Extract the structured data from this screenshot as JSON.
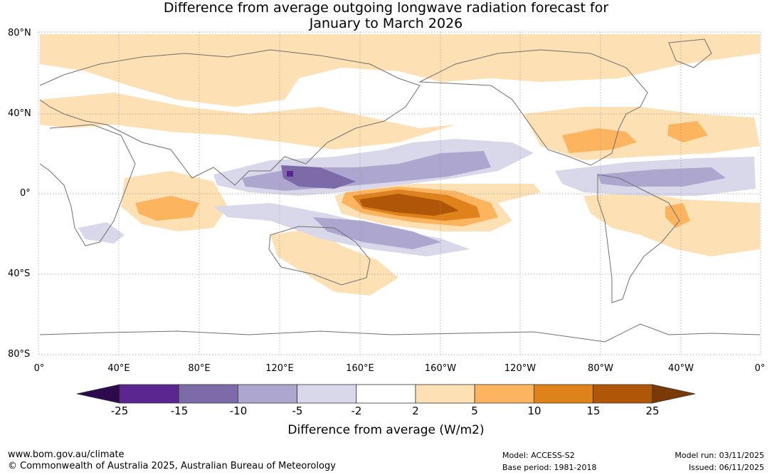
{
  "header": {
    "title_line1": "Difference from average outgoing longwave radiation forecast for",
    "title_line2": "January to March 2026"
  },
  "map": {
    "lat_labels": [
      "80°N",
      "40°N",
      "0°",
      "40°S",
      "80°S"
    ],
    "lon_labels": [
      "0°",
      "40°E",
      "80°E",
      "120°E",
      "160°E",
      "160°W",
      "120°W",
      "80°W",
      "40°W",
      "0°"
    ]
  },
  "colorbar": {
    "title": "Difference from average (W/m2)",
    "ticks": [
      "-25",
      "-15",
      "-10",
      "-5",
      "-2",
      "2",
      "5",
      "10",
      "15",
      "25"
    ],
    "colors": [
      "#2d0a4e",
      "#5b2690",
      "#7d6aa8",
      "#ada6cf",
      "#d8d8ea",
      "#ffffff",
      "#fde0b3",
      "#fcb45f",
      "#e0821a",
      "#b05609",
      "#7a3a08"
    ]
  },
  "footer": {
    "website": "www.bom.gov.au/climate",
    "copyright": "© Commonwealth of Australia 2025, Australian Bureau of Meteorology",
    "model": "Model: ACCESS-S2",
    "base_period": "Base period: 1981-2018",
    "model_run": "Model run: 03/11/2025",
    "issued": "Issued: 06/11/2025"
  }
}
